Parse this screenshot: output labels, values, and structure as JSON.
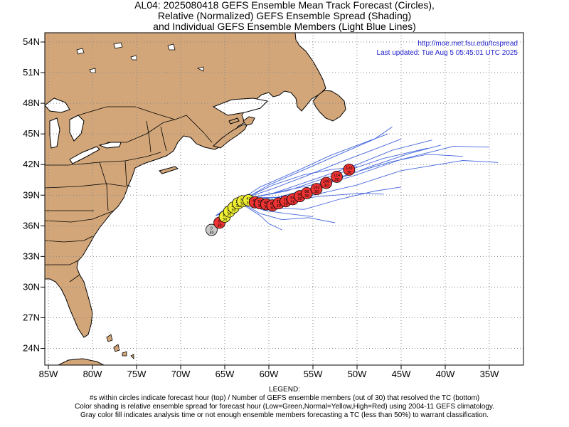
{
  "title": {
    "line1": "AL04: 2025080418 GEFS Ensemble Mean Track Forecast (Circles),",
    "line2": "Relative (Normalized) GEFS Ensemble Spread (Shading)",
    "line3": "and Individual GEFS Ensemble Members (Light Blue Lines)"
  },
  "credits": {
    "url": "http://moe.met.fsu.edu/tcspread",
    "updated": "Last updated: Tue Aug 5 05:45:01 UTC 2025"
  },
  "axes": {
    "lat_labels": [
      "54N",
      "51N",
      "48N",
      "45N",
      "42N",
      "39N",
      "36N",
      "33N",
      "30N",
      "27N",
      "24N"
    ],
    "lon_labels": [
      "85W",
      "80W",
      "75W",
      "70W",
      "65W",
      "60W",
      "55W",
      "50W",
      "45W",
      "40W",
      "35W"
    ]
  },
  "colors": {
    "land": "#d2a679",
    "ocean": "#ffffff",
    "member_track": "#4466dd",
    "analysis_fill": "#c8c8c8",
    "normal_spread": "#eeee33",
    "high_spread": "#ee3333"
  },
  "mean_track": [
    {
      "lon": -66.5,
      "lat": 35.6,
      "top": "0",
      "bot": "30",
      "fill": "gray"
    },
    {
      "lon": -65.6,
      "lat": 36.3,
      "top": "6",
      "bot": "30",
      "fill": "red"
    },
    {
      "lon": -65.0,
      "lat": 36.9,
      "top": "12",
      "bot": "30",
      "fill": "yellow"
    },
    {
      "lon": -64.5,
      "lat": 37.4,
      "top": "18",
      "bot": "30",
      "fill": "yellow"
    },
    {
      "lon": -64.0,
      "lat": 37.8,
      "top": "24",
      "bot": "30",
      "fill": "yellow"
    },
    {
      "lon": -63.5,
      "lat": 38.2,
      "top": "30",
      "bot": "30",
      "fill": "yellow"
    },
    {
      "lon": -63.0,
      "lat": 38.4,
      "top": "36",
      "bot": "30",
      "fill": "yellow"
    },
    {
      "lon": -62.3,
      "lat": 38.5,
      "top": "42",
      "bot": "30",
      "fill": "yellow"
    },
    {
      "lon": -61.6,
      "lat": 38.3,
      "top": "48",
      "bot": "30",
      "fill": "red"
    },
    {
      "lon": -61.0,
      "lat": 38.2,
      "top": "54",
      "bot": "30",
      "fill": "red"
    },
    {
      "lon": -60.3,
      "lat": 38.1,
      "top": "60",
      "bot": "30",
      "fill": "red"
    },
    {
      "lon": -59.6,
      "lat": 38.0,
      "top": "66",
      "bot": "30",
      "fill": "red"
    },
    {
      "lon": -58.9,
      "lat": 38.2,
      "top": "72",
      "bot": "30",
      "fill": "red"
    },
    {
      "lon": -58.1,
      "lat": 38.4,
      "top": "78",
      "bot": "30",
      "fill": "red"
    },
    {
      "lon": -57.3,
      "lat": 38.6,
      "top": "84",
      "bot": "30",
      "fill": "red"
    },
    {
      "lon": -56.5,
      "lat": 38.9,
      "top": "90",
      "bot": "30",
      "fill": "red"
    },
    {
      "lon": -55.7,
      "lat": 39.2,
      "top": "96",
      "bot": "30",
      "fill": "red"
    },
    {
      "lon": -54.6,
      "lat": 39.6,
      "top": "102",
      "bot": "30",
      "fill": "red"
    },
    {
      "lon": -53.5,
      "lat": 40.2,
      "top": "108",
      "bot": "30",
      "fill": "red"
    },
    {
      "lon": -52.3,
      "lat": 40.8,
      "top": "114",
      "bot": "30",
      "fill": "red"
    },
    {
      "lon": -50.9,
      "lat": 41.5,
      "top": "120",
      "bot": "30",
      "fill": "red"
    }
  ],
  "member_tracks": [
    [
      [
        -66.0,
        37.0
      ],
      [
        -63.5,
        38.5
      ],
      [
        -60.0,
        39.5
      ],
      [
        -56.0,
        40.8
      ],
      [
        -52.0,
        42.2
      ],
      [
        -48.0,
        43.5
      ],
      [
        -45.0,
        44.5
      ]
    ],
    [
      [
        -66.0,
        37.0
      ],
      [
        -63.0,
        38.6
      ],
      [
        -59.5,
        39.2
      ],
      [
        -55.0,
        40.5
      ],
      [
        -50.0,
        42.0
      ],
      [
        -46.0,
        43.4
      ],
      [
        -41.5,
        44.4
      ]
    ],
    [
      [
        -66.0,
        37.0
      ],
      [
        -63.0,
        38.7
      ],
      [
        -59.0,
        38.8
      ],
      [
        -55.0,
        39.7
      ],
      [
        -50.0,
        41.0
      ],
      [
        -45.0,
        42.5
      ],
      [
        -39.0,
        43.8
      ],
      [
        -35.0,
        43.7
      ]
    ],
    [
      [
        -66.0,
        37.0
      ],
      [
        -63.0,
        38.5
      ],
      [
        -59.0,
        38.3
      ],
      [
        -55.0,
        39.0
      ],
      [
        -50.0,
        40.0
      ],
      [
        -45.0,
        41.4
      ],
      [
        -38.0,
        42.4
      ],
      [
        -34.0,
        42.2
      ]
    ],
    [
      [
        -66.0,
        37.0
      ],
      [
        -63.0,
        38.4
      ],
      [
        -60.0,
        37.8
      ],
      [
        -56.0,
        37.6
      ],
      [
        -52.0,
        38.6
      ],
      [
        -48.0,
        39.4
      ],
      [
        -45.0,
        39.8
      ]
    ],
    [
      [
        -66.0,
        37.0
      ],
      [
        -63.2,
        38.3
      ],
      [
        -61.0,
        37.2
      ],
      [
        -58.5,
        36.6
      ],
      [
        -55.5,
        36.8
      ],
      [
        -52.5,
        36.3
      ]
    ],
    [
      [
        -66.0,
        37.0
      ],
      [
        -63.3,
        38.5
      ],
      [
        -61.0,
        39.8
      ],
      [
        -57.0,
        41.3
      ],
      [
        -53.0,
        42.9
      ],
      [
        -49.0,
        44.2
      ],
      [
        -46.5,
        45.0
      ]
    ],
    [
      [
        -66.0,
        37.0
      ],
      [
        -63.0,
        38.5
      ],
      [
        -60.0,
        40.0
      ],
      [
        -56.0,
        41.5
      ],
      [
        -52.0,
        43.0
      ],
      [
        -48.0,
        44.5
      ],
      [
        -46.0,
        45.7
      ]
    ],
    [
      [
        -66.0,
        37.0
      ],
      [
        -63.0,
        38.5
      ],
      [
        -60.0,
        38.7
      ],
      [
        -57.0,
        39.0
      ],
      [
        -53.0,
        40.3
      ],
      [
        -48.5,
        41.8
      ],
      [
        -44.0,
        43.1
      ],
      [
        -40.5,
        43.9
      ]
    ],
    [
      [
        -66.0,
        37.0
      ],
      [
        -62.8,
        38.0
      ],
      [
        -61.0,
        37.0
      ],
      [
        -60.0,
        36.2
      ],
      [
        -58.5,
        35.6
      ]
    ],
    [
      [
        -66.0,
        37.0
      ],
      [
        -63.0,
        38.6
      ],
      [
        -58.0,
        39.4
      ],
      [
        -52.5,
        41.0
      ],
      [
        -47.0,
        42.6
      ],
      [
        -42.0,
        43.6
      ]
    ],
    [
      [
        -66.0,
        37.0
      ],
      [
        -63.2,
        38.4
      ],
      [
        -59.0,
        38.4
      ],
      [
        -54.0,
        38.9
      ],
      [
        -49.5,
        39.2
      ],
      [
        -47.0,
        39.1
      ]
    ],
    [
      [
        -66.0,
        37.0
      ],
      [
        -63.0,
        38.5
      ],
      [
        -59.0,
        39.3
      ],
      [
        -54.0,
        40.2
      ],
      [
        -50.0,
        41.3
      ],
      [
        -46.0,
        42.3
      ],
      [
        -42.0,
        43.0
      ],
      [
        -38.0,
        42.8
      ]
    ],
    [
      [
        -66.0,
        37.0
      ],
      [
        -63.0,
        38.3
      ],
      [
        -60.5,
        37.5
      ],
      [
        -58.0,
        37.2
      ],
      [
        -55.0,
        36.9
      ]
    ],
    [
      [
        -66.0,
        37.0
      ],
      [
        -63.0,
        38.6
      ],
      [
        -59.5,
        40.0
      ],
      [
        -56.0,
        41.0
      ],
      [
        -53.0,
        41.5
      ],
      [
        -50.0,
        41.8
      ]
    ]
  ],
  "legend": {
    "heading": "LEGEND:",
    "line1": "#s within circles indicate forecast hour (top) / Number of GEFS ensemble members (out of 30) that resolved the TC (bottom)",
    "line2": "Color shading is relative ensemble spread for forecast hour (Low=Green,Normal=Yellow,High=Red) using 2004-11 GEFS climatology.",
    "line3": "Gray color fill indicates analysis time or not enough ensemble members forecasting a TC (less than 50%) to warrant classification."
  }
}
